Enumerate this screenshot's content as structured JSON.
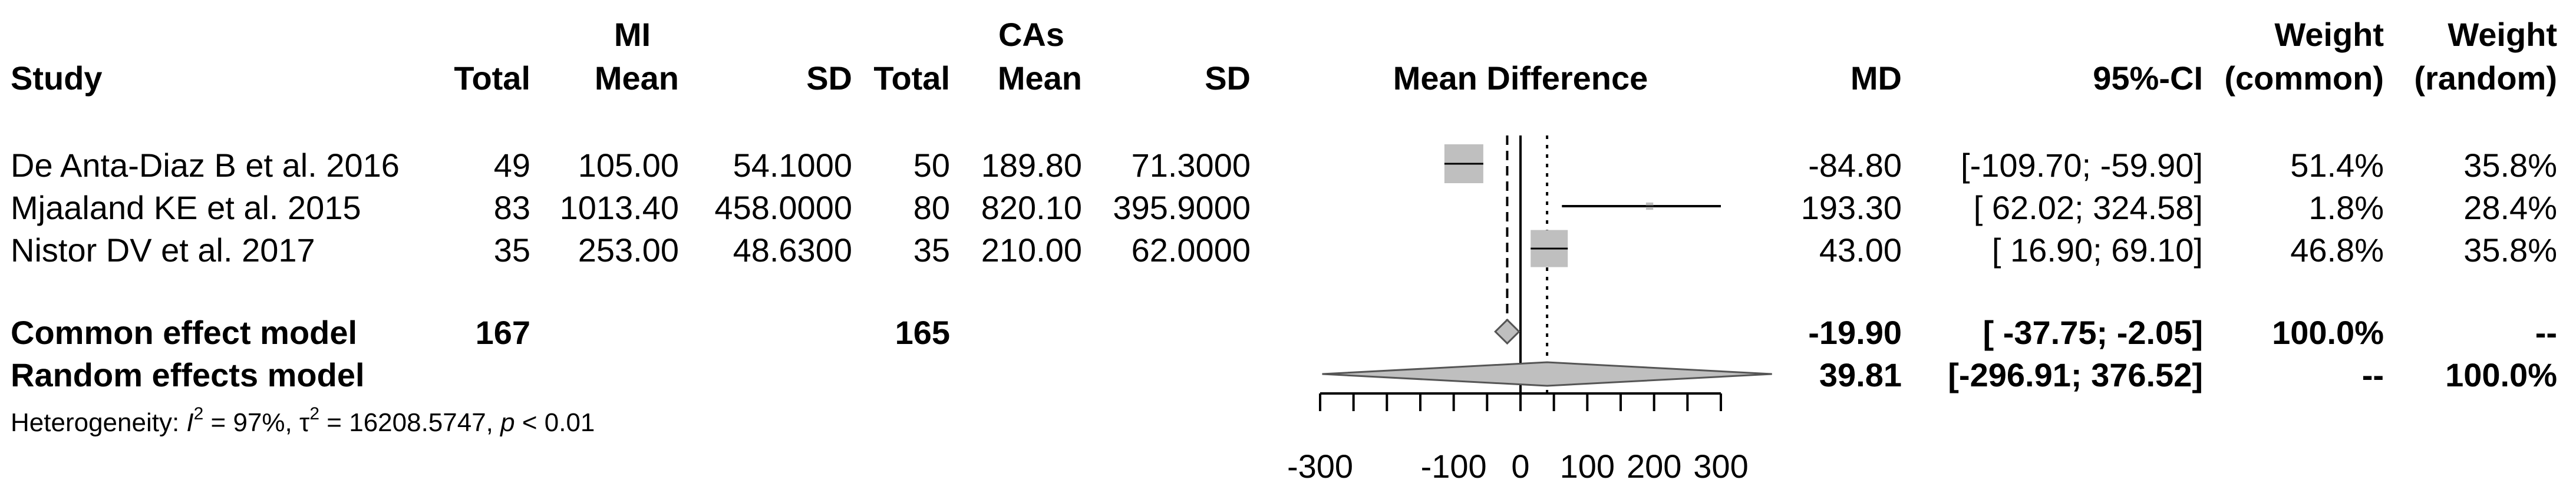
{
  "headers": {
    "group1": "MI",
    "group2": "CAs",
    "study": "Study",
    "total1": "Total",
    "mean1": "Mean",
    "sd1": "SD",
    "total2": "Total",
    "mean2": "Mean",
    "sd2": "SD",
    "plot": "Mean Difference",
    "md": "MD",
    "ci": "95%-CI",
    "weight_common_line1": "Weight",
    "weight_common_line2": "(common)",
    "weight_random_line1": "Weight",
    "weight_random_line2": "(random)"
  },
  "studies": [
    {
      "name": "De Anta-Diaz B et al. 2016",
      "total1": "49",
      "mean1": "105.00",
      "sd1": "54.1000",
      "total2": "50",
      "mean2": "189.80",
      "sd2": "71.3000",
      "md_text": "-84.80",
      "ci_text": "[-109.70; -59.90]",
      "w_common": "51.4%",
      "w_random": "35.8%"
    },
    {
      "name": "Mjaaland KE et al. 2015",
      "total1": "83",
      "mean1": "1013.40",
      "sd1": "458.0000",
      "total2": "80",
      "mean2": "820.10",
      "sd2": "395.9000",
      "md_text": "193.30",
      "ci_text": "[ 62.02; 324.58]",
      "w_common": "1.8%",
      "w_random": "28.4%"
    },
    {
      "name": "Nistor DV et al. 2017",
      "total1": "35",
      "mean1": "253.00",
      "sd1": "48.6300",
      "total2": "35",
      "mean2": "210.00",
      "sd2": "62.0000",
      "md_text": "43.00",
      "ci_text": "[ 16.90; 69.10]",
      "w_common": "46.8%",
      "w_random": "35.8%"
    }
  ],
  "common": {
    "label": "Common effect model",
    "total1": "167",
    "total2": "165",
    "md_text": "-19.90",
    "ci_text": "[ -37.75; -2.05]",
    "w_common": "100.0%",
    "w_random": "--"
  },
  "random": {
    "label": "Random effects model",
    "md_text": "39.81",
    "ci_text": "[-296.91; 376.52]",
    "w_common": "--",
    "w_random": "100.0%"
  },
  "heterogeneity": {
    "prefix": "Heterogeneity: ",
    "i2_symbol": "I",
    "i2_value": " = 97%, ",
    "tau2_symbol": "τ",
    "tau2_value": " = 16208.5747, ",
    "p_symbol": "p",
    "p_value": " < 0.01"
  },
  "chart_data": {
    "type": "forest",
    "xlim": [
      -300,
      300
    ],
    "x_ticks": [
      -300,
      -100,
      0,
      100,
      200,
      300
    ],
    "x_tick_labels": [
      "-300",
      "-100",
      "0",
      "100",
      "200",
      "300"
    ],
    "null_line": 0,
    "studies": [
      {
        "label": "De Anta-Diaz B et al. 2016",
        "md": -84.8,
        "lower": -109.7,
        "upper": -59.9,
        "weight_common": 51.4
      },
      {
        "label": "Mjaaland KE et al. 2015",
        "md": 193.3,
        "lower": 62.02,
        "upper": 324.58,
        "weight_common": 1.8
      },
      {
        "label": "Nistor DV et al. 2017",
        "md": 43.0,
        "lower": 16.9,
        "upper": 69.1,
        "weight_common": 46.8
      }
    ],
    "common_effect": {
      "md": -19.9,
      "lower": -37.75,
      "upper": -2.05
    },
    "random_effects": {
      "md": 39.81,
      "lower": -296.91,
      "upper": 376.52
    },
    "colors": {
      "square": "#bfbfbf",
      "diamond": "#bfbfbf",
      "line": "#000000"
    }
  }
}
